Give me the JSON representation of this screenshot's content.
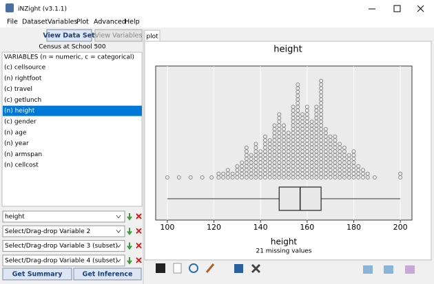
{
  "window": {
    "title": "iNZight (v3.1.1)"
  },
  "menu": [
    "File",
    "Dataset",
    "Variables",
    "Plot",
    "Advanced",
    "Help"
  ],
  "left_panel": {
    "buttons": [
      "View Data Set",
      "View Variables"
    ],
    "dataset_name": "Census at School 500",
    "variables_header": "VARIABLES (n = numeric, c = categorical)",
    "variables": [
      "(c) cellsource",
      "(n) rightfoot",
      "(c) travel",
      "(c) getlunch",
      "(n) height",
      "(c) gender",
      "(n) age",
      "(n) year",
      "(n) armspan",
      "(n) cellcost"
    ],
    "selected_variable": 4,
    "dropdowns": [
      "height",
      "Select/Drag-drop Variable 2",
      "Select/Drag-drop Variable 3 (subset)",
      "Select/Drag-drop Variable 4 (subset)"
    ],
    "actions": [
      "Get Summary",
      "Get Inference"
    ]
  },
  "tab": "plot",
  "chart_data": {
    "type": "dotplot",
    "title": "height",
    "x_label": "height",
    "note": "21 missing values",
    "x": [
      100,
      105,
      110,
      115,
      119,
      122,
      124,
      126,
      128,
      130,
      132,
      134,
      136,
      138,
      140,
      142,
      144,
      146,
      148,
      150,
      152,
      154,
      156,
      158,
      160,
      162,
      164,
      166,
      168,
      170,
      172,
      174,
      176,
      178,
      180,
      182,
      184,
      186,
      189,
      200
    ],
    "values": [
      1,
      1,
      1,
      1,
      1,
      2,
      2,
      3,
      2,
      4,
      5,
      9,
      7,
      10,
      8,
      12,
      11,
      15,
      18,
      15,
      13,
      20,
      26,
      18,
      20,
      16,
      20,
      27,
      14,
      12,
      12,
      10,
      9,
      7,
      8,
      4,
      3,
      2,
      1,
      2
    ],
    "color": "#888888",
    "box": {
      "min": 100,
      "q1": 148,
      "median": 157,
      "q3": 166,
      "max": 200
    },
    "xlim": [
      95,
      205
    ],
    "xticks": [
      100,
      120,
      140,
      160,
      180,
      200
    ],
    "grid": true
  }
}
